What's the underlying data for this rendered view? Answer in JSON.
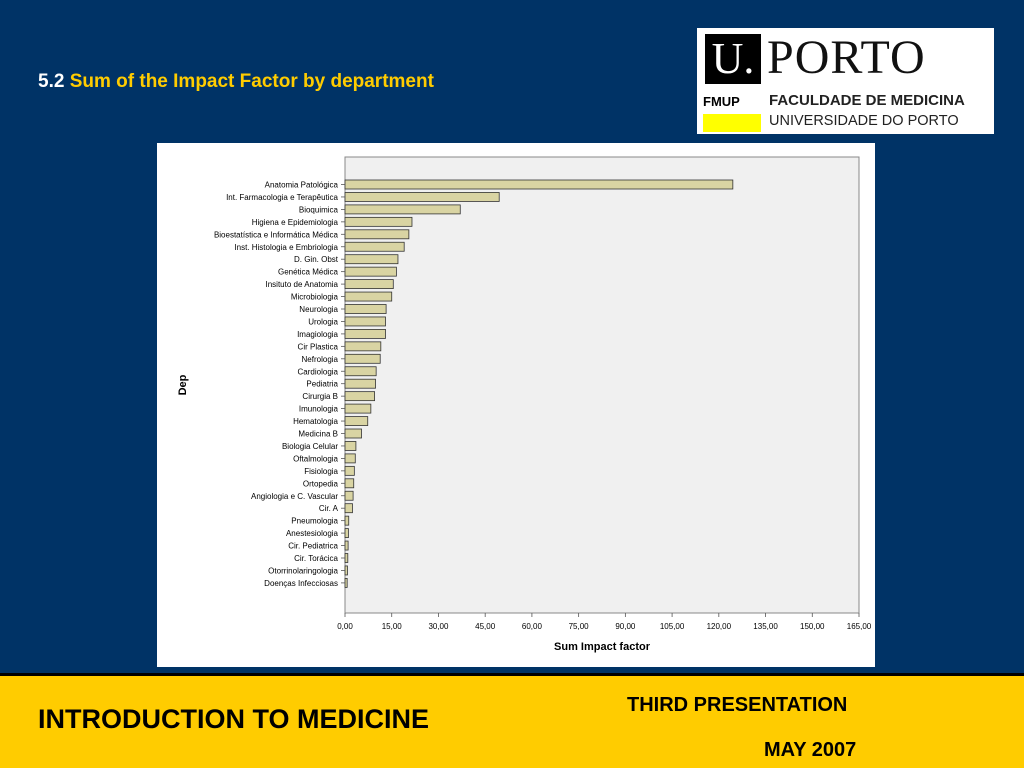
{
  "slide": {
    "title_number": "5.2",
    "title_text": "Sum of the Impact Factor by department",
    "course": "INTRODUCTION TO MEDICINE",
    "presentation": "THIRD PRESENTATION",
    "date": "MAY 2007"
  },
  "logo": {
    "u_text": "U.",
    "porto_text": "PORTO",
    "fmup": "FMUP",
    "line1": "FACULDADE DE MEDICINA",
    "line2": "UNIVERSIDADE DO PORTO"
  },
  "colors": {
    "background": "#003366",
    "accent": "#ffcc00",
    "bar_fill": "#d9d4a3",
    "plot_bg": "#f0f0f0"
  },
  "chart_data": {
    "type": "bar",
    "orientation": "horizontal",
    "xlabel": "Sum Impact factor",
    "ylabel": "Dep",
    "xlim": [
      0,
      165
    ],
    "xticks": [
      "0,00",
      "15,00",
      "30,00",
      "45,00",
      "60,00",
      "75,00",
      "90,00",
      "105,00",
      "120,00",
      "135,00",
      "150,00",
      "165,00"
    ],
    "grid": false,
    "categories": [
      "Anatomia Patológica",
      "Int. Farmacologia e Terapêutica",
      "Bioquimica",
      "Higiena e Epidemiologia",
      "Bioestatística e Informática Médica",
      "Inst. Histologia e Embriologia",
      "D. Gin. Obst",
      "Genética Médica",
      "Insituto de Anatomia",
      "Microbiologia",
      "Neurologia",
      "Urologia",
      "Imagiologia",
      "Cir Plastica",
      "Nefrologia",
      "Cardiologia",
      "Pediatria",
      "Cirurgia B",
      "Imunologia",
      "Hematologia",
      "Medicina B",
      "Biologia Celular",
      "Oftalmologia",
      "Fisiologia",
      "Ortopedia",
      "Angiologia e C. Vascular",
      "Cir. A",
      "Pneumologia",
      "Anestesiologia",
      "Cir. Pediatrica",
      "Cir. Torácica",
      "Otorrinolaringologia",
      "Doenças Infecciosas"
    ],
    "values": [
      124.5,
      49.5,
      37,
      21.5,
      20.5,
      19,
      17,
      16.5,
      15.5,
      15,
      13.2,
      13,
      13,
      11.5,
      11.3,
      10,
      9.8,
      9.5,
      8.3,
      7.3,
      5.3,
      3.5,
      3.3,
      3,
      2.8,
      2.6,
      2.4,
      1.2,
      1.1,
      1.0,
      0.9,
      0.8,
      0.7
    ]
  }
}
